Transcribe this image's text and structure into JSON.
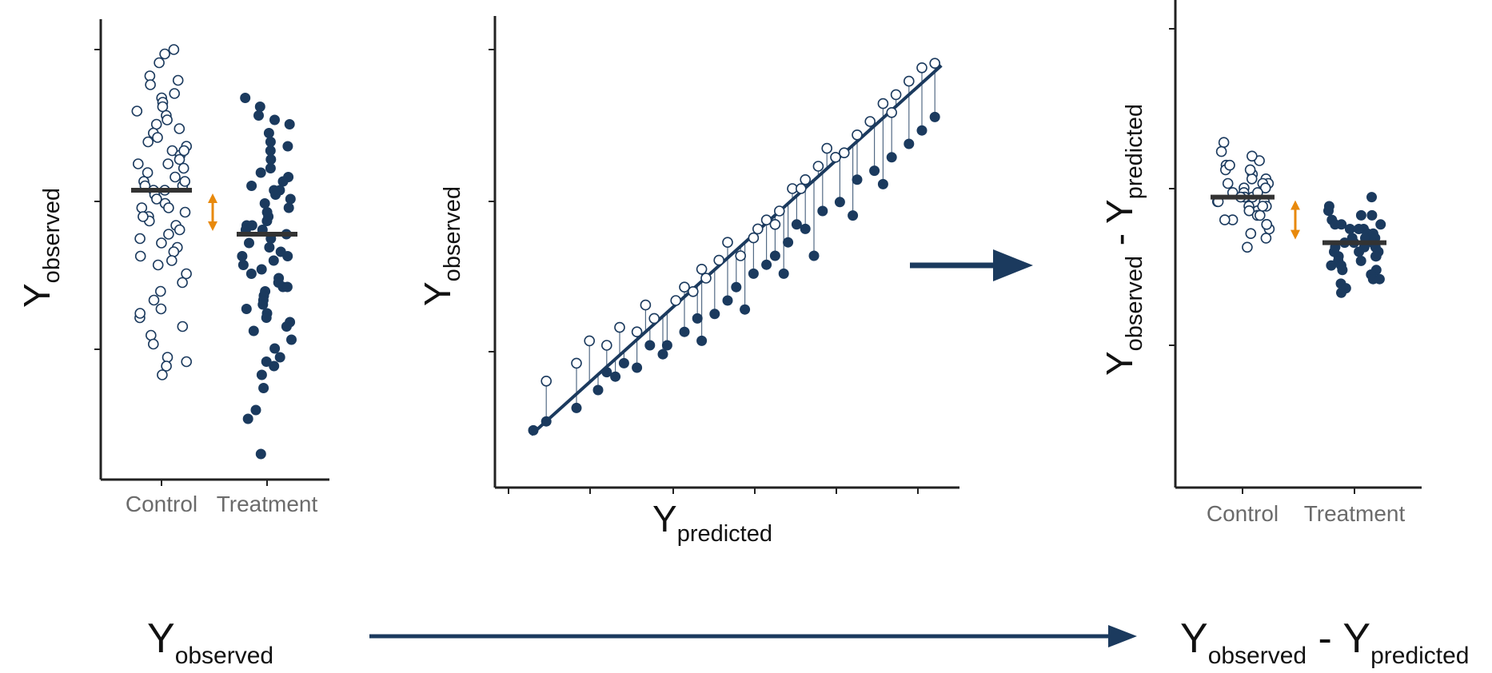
{
  "labels": {
    "y_main": "Y",
    "sub_observed": "observed",
    "sub_predicted": "predicted",
    "minus": " - "
  },
  "colors": {
    "navy": "#1b3a5e",
    "orange": "#e8890c",
    "axis": "#222222",
    "mean_line": "#333333"
  },
  "chart_data": [
    {
      "type": "scatter",
      "title": "",
      "xlabel": "",
      "ylabel": "Y observed",
      "categories": [
        "Control",
        "Treatment"
      ],
      "ylim": [
        0,
        10
      ],
      "series": [
        {
          "category": "Control",
          "marker": "open",
          "mean": 6.4,
          "values": [
            9.6,
            9.5,
            9.3,
            9.0,
            8.9,
            8.6,
            8.5,
            8.4,
            8.3,
            8.2,
            8.1,
            8.0,
            7.9,
            7.8,
            7.7,
            7.6,
            7.5,
            7.4,
            7.3,
            7.2,
            7.1,
            7.0,
            7.0,
            6.9,
            6.8,
            6.7,
            6.6,
            6.5,
            6.5,
            6.4,
            6.4,
            6.3,
            6.2,
            6.1,
            6.0,
            6.0,
            5.9,
            5.8,
            5.7,
            5.6,
            5.5,
            5.4,
            5.3,
            5.2,
            5.1,
            5.0,
            4.9,
            4.7,
            4.5,
            4.3,
            4.1,
            3.9,
            3.7,
            3.5,
            3.3,
            3.1,
            2.9,
            2.6,
            2.4,
            2.2,
            8.8,
            7.3,
            6.6,
            5.8,
            4.8,
            3.6,
            2.5
          ]
        },
        {
          "category": "Treatment",
          "marker": "filled",
          "mean": 5.4,
          "values": [
            8.5,
            8.3,
            8.1,
            7.9,
            7.7,
            7.5,
            7.3,
            7.1,
            6.9,
            6.8,
            6.7,
            6.6,
            6.5,
            6.4,
            6.3,
            6.2,
            6.1,
            6.0,
            5.9,
            5.8,
            5.7,
            5.6,
            5.5,
            5.5,
            5.4,
            5.3,
            5.2,
            5.1,
            5.0,
            4.9,
            4.8,
            4.7,
            4.6,
            4.5,
            4.4,
            4.3,
            4.2,
            4.1,
            4.0,
            3.9,
            3.8,
            3.7,
            3.6,
            3.5,
            3.4,
            3.2,
            3.0,
            2.8,
            2.6,
            2.4,
            2.2,
            1.9,
            1.2,
            0.4,
            8.0,
            7.4,
            6.4,
            5.6,
            4.9,
            4.2,
            3.3,
            2.5,
            1.4
          ]
        }
      ]
    },
    {
      "type": "scatter",
      "title": "",
      "xlabel": "Y predicted",
      "ylabel": "Y observed",
      "xlim": [
        0,
        10
      ],
      "ylim": [
        0,
        10
      ],
      "regression_line": [
        [
          0.45,
          1.0
        ],
        [
          9.95,
          9.25
        ]
      ],
      "series": [
        {
          "name": "Control",
          "marker": "open",
          "points": [
            [
              0.8,
              2.2
            ],
            [
              1.5,
              2.6
            ],
            [
              1.8,
              3.1
            ],
            [
              2.2,
              3.0
            ],
            [
              2.5,
              3.4
            ],
            [
              2.9,
              3.3
            ],
            [
              3.3,
              3.6
            ],
            [
              3.8,
              4.0
            ],
            [
              4.2,
              4.2
            ],
            [
              4.4,
              4.7
            ],
            [
              4.8,
              4.9
            ],
            [
              5.0,
              5.3
            ],
            [
              5.3,
              5.0
            ],
            [
              5.6,
              5.4
            ],
            [
              5.9,
              5.8
            ],
            [
              6.2,
              6.0
            ],
            [
              6.5,
              6.5
            ],
            [
              6.8,
              6.7
            ],
            [
              7.1,
              7.0
            ],
            [
              7.3,
              7.4
            ],
            [
              7.7,
              7.3
            ],
            [
              8.0,
              7.7
            ],
            [
              8.3,
              8.0
            ],
            [
              8.6,
              8.4
            ],
            [
              8.9,
              8.6
            ],
            [
              9.2,
              8.9
            ],
            [
              9.5,
              9.2
            ],
            [
              9.8,
              9.3
            ],
            [
              3.1,
              3.9
            ],
            [
              4.5,
              4.5
            ],
            [
              5.7,
              5.6
            ],
            [
              6.7,
              6.5
            ],
            [
              7.5,
              7.2
            ],
            [
              8.8,
              8.2
            ],
            [
              4.0,
              4.3
            ],
            [
              6.1,
              5.7
            ]
          ]
        },
        {
          "name": "Treatment",
          "marker": "filled",
          "points": [
            [
              0.5,
              1.1
            ],
            [
              0.8,
              1.3
            ],
            [
              1.5,
              1.6
            ],
            [
              2.0,
              2.0
            ],
            [
              2.4,
              2.3
            ],
            [
              2.6,
              2.6
            ],
            [
              2.9,
              2.5
            ],
            [
              3.2,
              3.0
            ],
            [
              3.6,
              3.0
            ],
            [
              4.0,
              3.3
            ],
            [
              4.3,
              3.6
            ],
            [
              4.7,
              3.7
            ],
            [
              5.0,
              4.0
            ],
            [
              5.2,
              4.3
            ],
            [
              5.6,
              4.6
            ],
            [
              5.9,
              4.8
            ],
            [
              6.1,
              5.0
            ],
            [
              6.4,
              5.3
            ],
            [
              6.8,
              5.6
            ],
            [
              7.2,
              6.0
            ],
            [
              7.6,
              6.2
            ],
            [
              8.0,
              6.7
            ],
            [
              8.4,
              6.9
            ],
            [
              8.8,
              7.2
            ],
            [
              9.2,
              7.5
            ],
            [
              9.5,
              7.8
            ],
            [
              9.8,
              8.1
            ],
            [
              3.5,
              2.8
            ],
            [
              4.4,
              3.1
            ],
            [
              5.4,
              3.8
            ],
            [
              6.3,
              4.6
            ],
            [
              7.0,
              5.0
            ],
            [
              7.9,
              5.9
            ],
            [
              8.6,
              6.6
            ],
            [
              2.2,
              2.4
            ],
            [
              6.6,
              5.7
            ]
          ]
        }
      ]
    },
    {
      "type": "scatter",
      "title": "",
      "xlabel": "",
      "ylabel": "Y observed - Y predicted",
      "categories": [
        "Control",
        "Treatment"
      ],
      "ylim": [
        0,
        10
      ],
      "series": [
        {
          "category": "Control",
          "marker": "open",
          "mean": 6.2,
          "values": [
            7.4,
            7.2,
            7.0,
            6.9,
            6.8,
            6.7,
            6.6,
            6.6,
            6.5,
            6.5,
            6.4,
            6.4,
            6.3,
            6.3,
            6.2,
            6.2,
            6.2,
            6.1,
            6.1,
            6.0,
            6.0,
            5.9,
            5.9,
            5.8,
            5.8,
            5.7,
            5.7,
            5.6,
            5.5,
            5.4,
            5.3,
            5.1,
            7.1,
            6.8,
            6.5,
            6.3,
            6.0,
            5.6,
            6.9,
            6.1
          ]
        },
        {
          "category": "Treatment",
          "marker": "filled",
          "mean": 5.2,
          "values": [
            6.2,
            6.0,
            5.9,
            5.8,
            5.7,
            5.6,
            5.6,
            5.5,
            5.5,
            5.4,
            5.4,
            5.3,
            5.3,
            5.2,
            5.2,
            5.2,
            5.1,
            5.1,
            5.0,
            5.0,
            4.9,
            4.9,
            4.8,
            4.8,
            4.7,
            4.6,
            4.5,
            4.4,
            4.3,
            4.2,
            5.8,
            5.5,
            5.3,
            5.0,
            4.7,
            4.4,
            5.6,
            5.1,
            4.9,
            4.6,
            4.1
          ]
        }
      ]
    }
  ]
}
